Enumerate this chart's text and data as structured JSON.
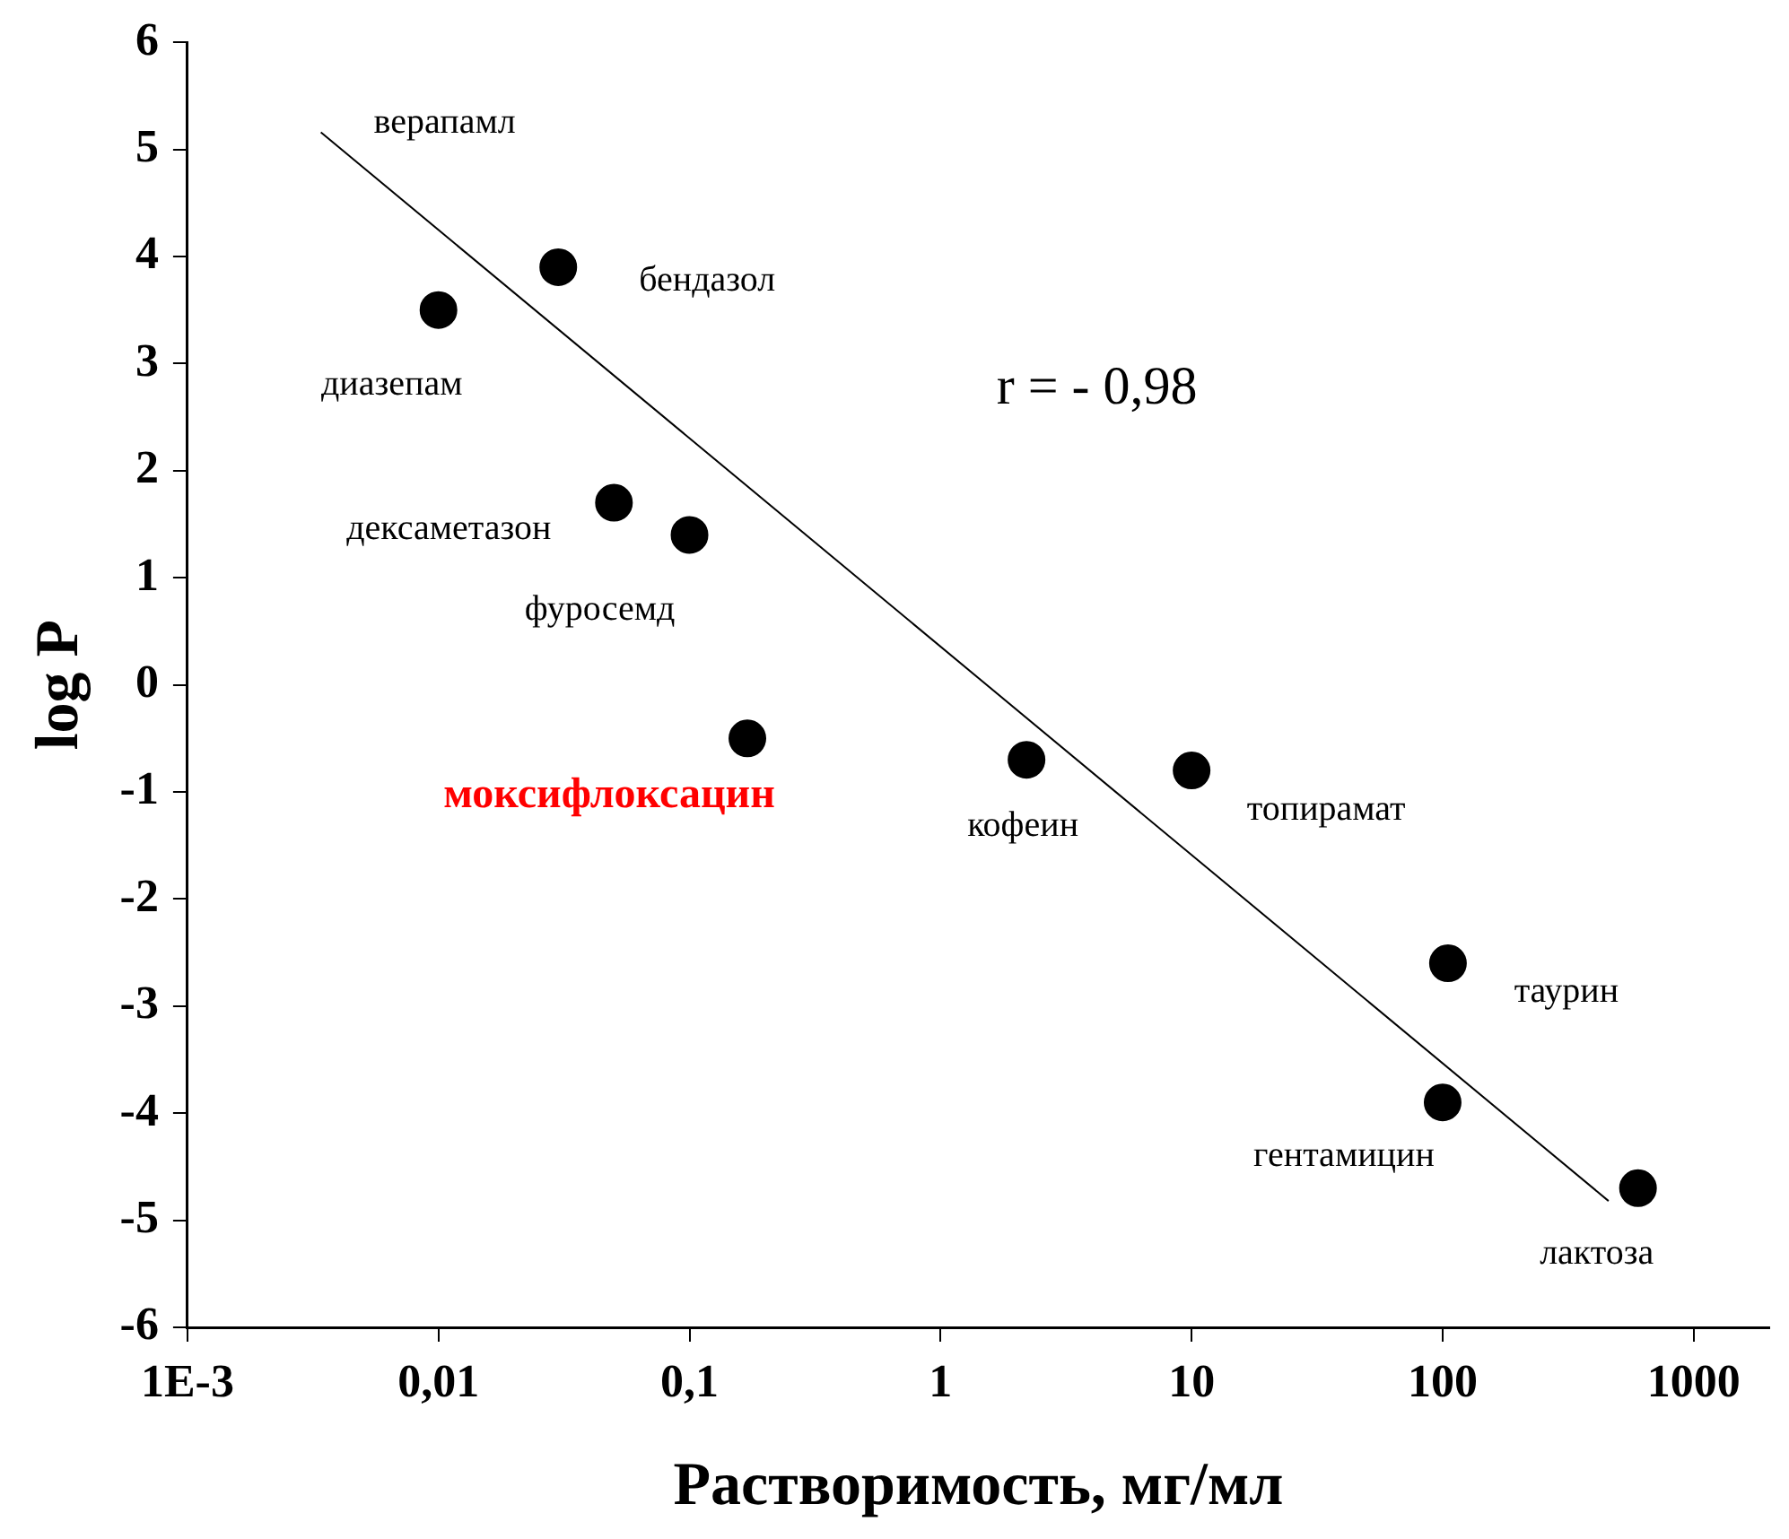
{
  "chart_data": {
    "type": "scatter",
    "xlabel": "Растворимость, мг/мл",
    "ylabel": "log P",
    "log": "x",
    "grid": false,
    "legend": false,
    "xlim": [
      0.001,
      2000
    ],
    "ylim": [
      -6,
      6
    ],
    "xticks": [
      {
        "value": 0.001,
        "label": "1E-3"
      },
      {
        "value": 0.01,
        "label": "0,01"
      },
      {
        "value": 0.1,
        "label": "0,1"
      },
      1,
      10,
      100,
      1000
    ],
    "yticks": [
      -6,
      -5,
      -4,
      -3,
      -2,
      -1,
      0,
      1,
      2,
      3,
      4,
      5,
      6
    ],
    "series": [
      {
        "type": "scatter",
        "color": "#000000",
        "marker": "circle",
        "x": [
          0.01,
          0.03,
          0.05,
          0.1,
          0.17,
          2.2,
          10,
          105,
          100,
          600
        ],
        "values": [
          3.5,
          3.9,
          1.7,
          1.4,
          -0.5,
          -0.7,
          -0.8,
          -2.6,
          -3.9,
          -4.7
        ]
      },
      {
        "type": "line",
        "color": "#000000",
        "marker": "none",
        "line_style": "solid",
        "x": [
          0.0034,
          458
        ],
        "values": [
          5.16,
          -4.82
        ]
      }
    ],
    "annotations": [
      {
        "text": "верапамл",
        "x": 0.0034,
        "y": 5.16
      },
      {
        "text": "бендазол",
        "x": 0.03,
        "y": 3.9
      },
      {
        "text": "диазепам",
        "x": 0.01,
        "y": 3.5
      },
      {
        "text": "дексаметазон",
        "x": 0.05,
        "y": 1.7
      },
      {
        "text": "фуросемд",
        "x": 0.1,
        "y": 1.4
      },
      {
        "text": "моксифлоксацин",
        "x": 0.17,
        "y": -0.5
      },
      {
        "text": "кофеин",
        "x": 2.2,
        "y": -0.7
      },
      {
        "text": "топирамат",
        "x": 10,
        "y": -0.8
      },
      {
        "text": "таурин",
        "x": 105,
        "y": -2.6
      },
      {
        "text": "гентамицин",
        "x": 100,
        "y": -3.9
      },
      {
        "text": "лактоза",
        "x": 600,
        "y": -4.7
      },
      "r = - 0,98"
    ]
  }
}
